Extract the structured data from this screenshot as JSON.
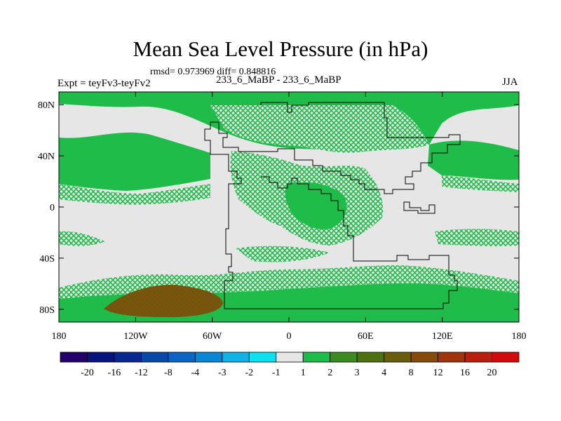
{
  "title": "Mean Sea Level Pressure (in hPa)",
  "stats_line": "rmsd= 0.973969 diff= 0.848816",
  "experiment_label": "Expt = teyFv3-teyFv2",
  "runs_label": "233_6_MaBP - 233_6_MaBP",
  "season_label": "JJA",
  "map": {
    "lon_range": [
      -180,
      180
    ],
    "lat_range": [
      -90,
      90
    ],
    "lat_ticks": [
      {
        "value": 80,
        "label": "80N"
      },
      {
        "value": 40,
        "label": "40N"
      },
      {
        "value": 0,
        "label": "0"
      },
      {
        "value": -40,
        "label": "40S"
      },
      {
        "value": -80,
        "label": "80S"
      }
    ],
    "lon_ticks": [
      {
        "value": -180,
        "label": "180"
      },
      {
        "value": -120,
        "label": "120W"
      },
      {
        "value": -60,
        "label": "60W"
      },
      {
        "value": 0,
        "label": "0"
      },
      {
        "value": 60,
        "label": "60E"
      },
      {
        "value": 120,
        "label": "120E"
      },
      {
        "value": 180,
        "label": "180"
      }
    ]
  },
  "colorbar": {
    "colors": [
      "#24006b",
      "#0a127e",
      "#06288f",
      "#0a48a8",
      "#0a65c4",
      "#0a86d6",
      "#12b2e6",
      "#0de0ef",
      "#e6e6e6",
      "#1fbc4a",
      "#3c8a21",
      "#4f7012",
      "#6a5d0c",
      "#864a0c",
      "#a0340c",
      "#b81f0c",
      "#d10b0b"
    ],
    "labels": [
      "-20",
      "-16",
      "-12",
      "-8",
      "-4",
      "-3",
      "-2",
      "-1",
      "1",
      "2",
      "3",
      "4",
      "8",
      "12",
      "16",
      "20"
    ]
  }
}
